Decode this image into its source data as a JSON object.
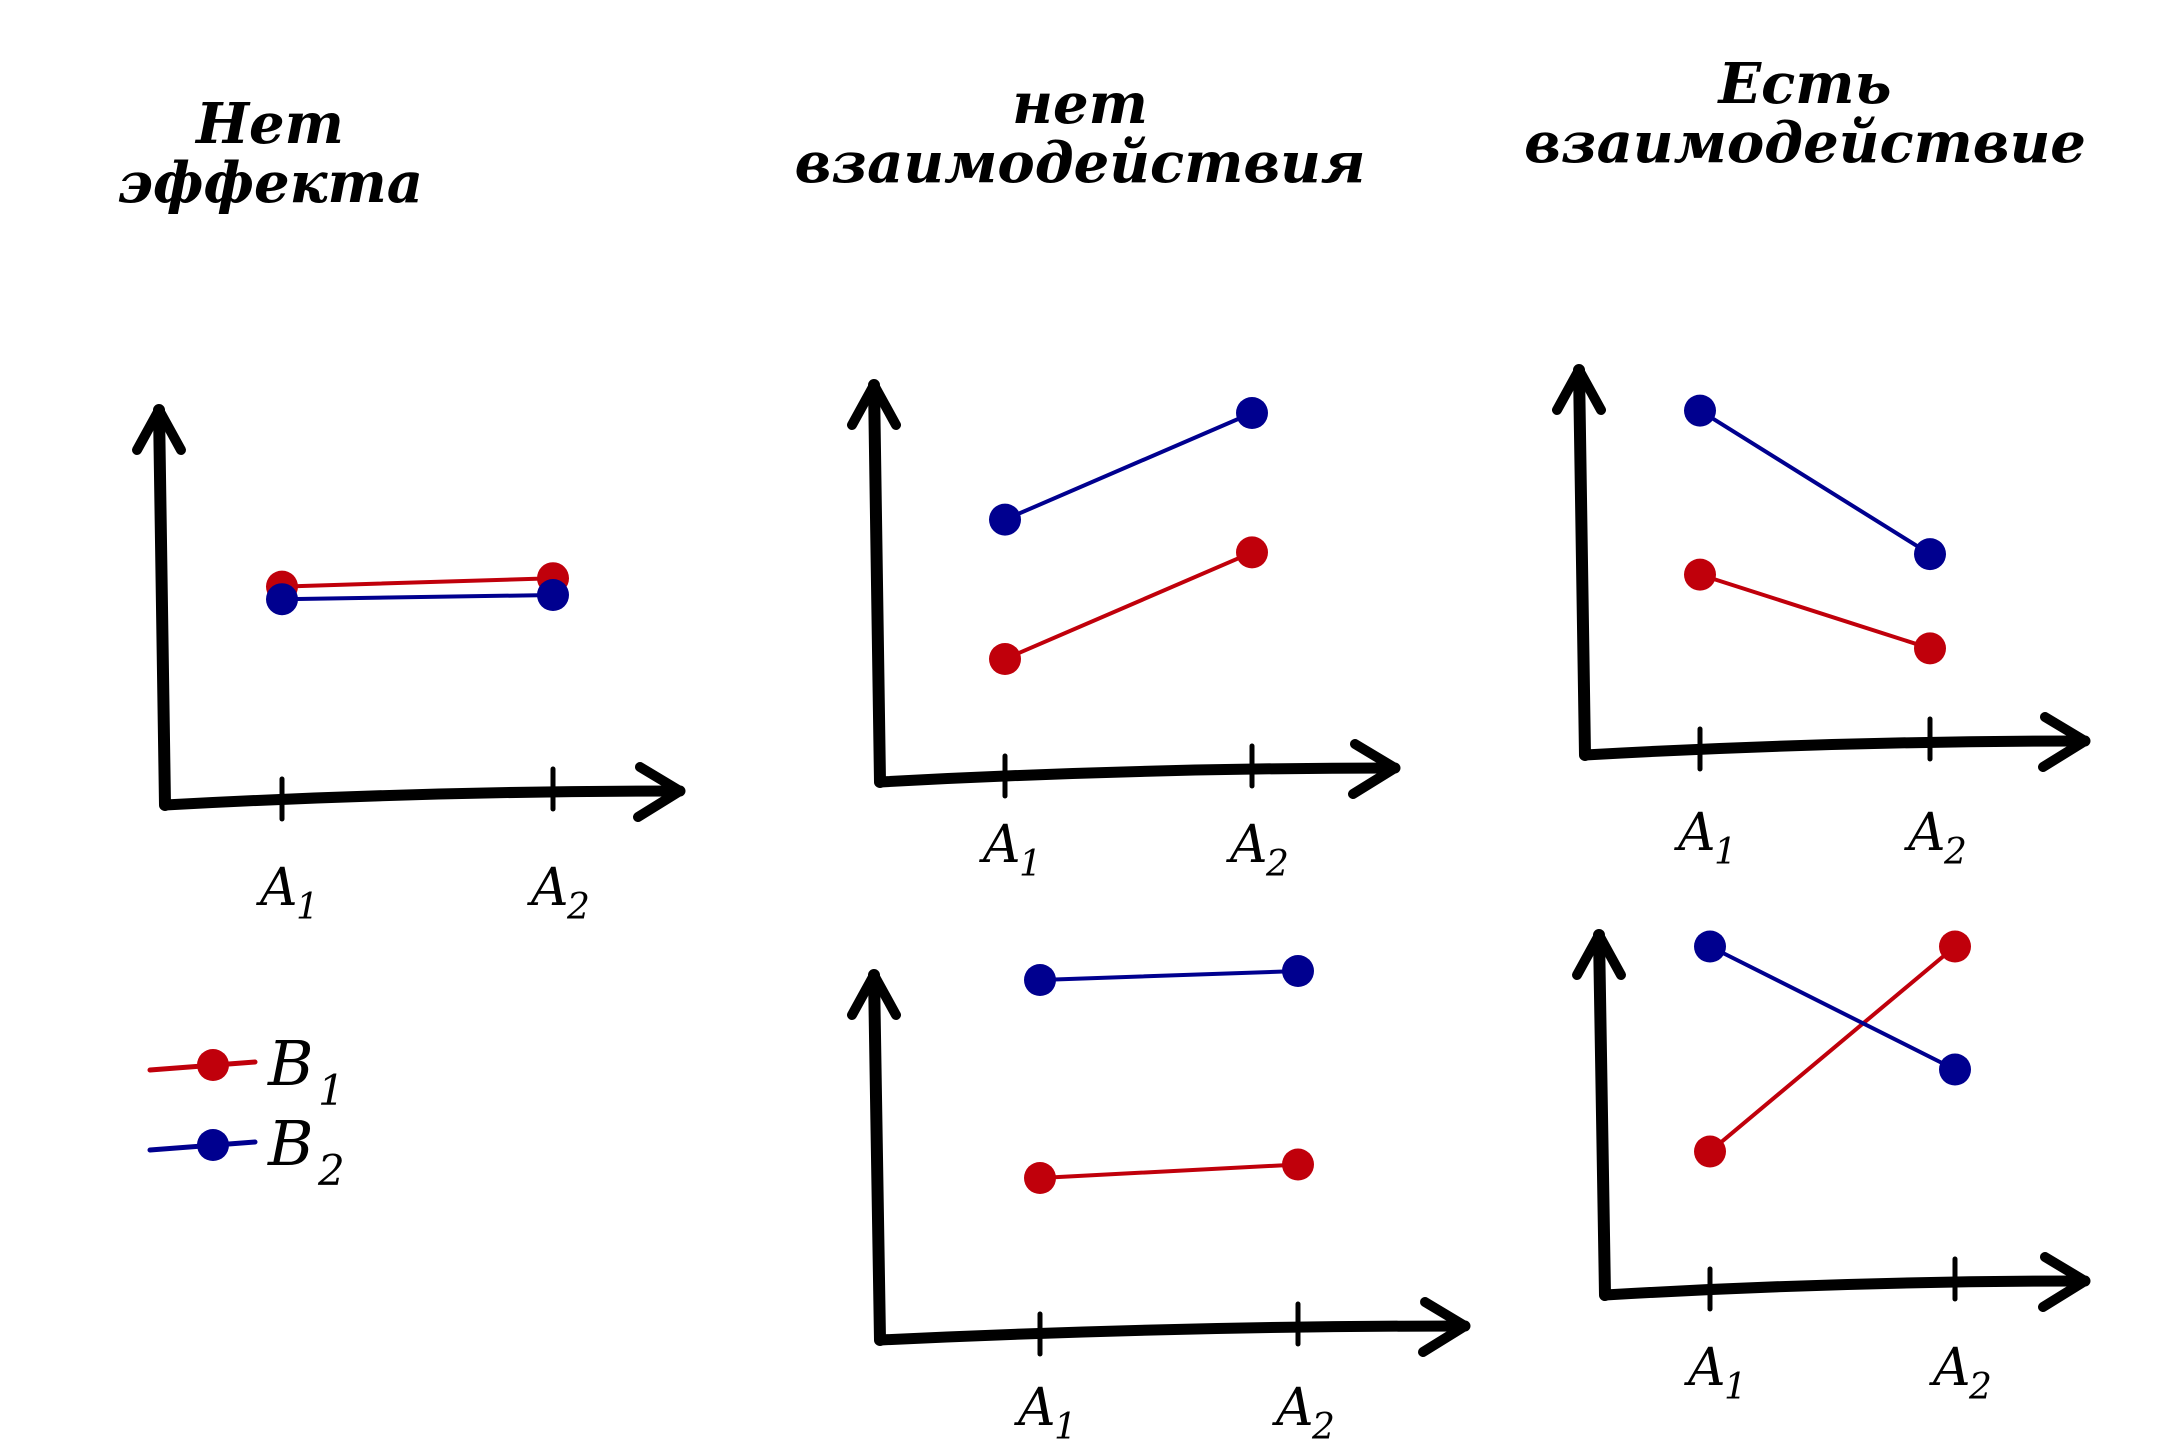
{
  "titles": {
    "no_effect": [
      "Нет",
      "эффекта"
    ],
    "no_interaction": [
      "нет",
      "взаимодействия"
    ],
    "has_interaction": [
      "Есть",
      "взаимодействие"
    ]
  },
  "colors": {
    "b1": "#c0000b",
    "b2": "#00008f",
    "axis": "#000000"
  },
  "legend": [
    {
      "name": "B",
      "sub": "1",
      "color_key": "b1"
    },
    {
      "name": "B",
      "sub": "2",
      "color_key": "b2"
    }
  ],
  "tick_labels": [
    {
      "text": "A",
      "sub": "1"
    },
    {
      "text": "A",
      "sub": "2"
    }
  ],
  "chart_data": [
    {
      "type": "line",
      "group": "no_effect",
      "categories": [
        "A1",
        "A2"
      ],
      "series": [
        {
          "name": "B1",
          "values": [
            5.2,
            5.4
          ]
        },
        {
          "name": "B2",
          "values": [
            4.9,
            5.0
          ]
        }
      ]
    },
    {
      "type": "line",
      "group": "no_interaction",
      "categories": [
        "A1",
        "A2"
      ],
      "series": [
        {
          "name": "B1",
          "values": [
            3.0,
            5.6
          ]
        },
        {
          "name": "B2",
          "values": [
            6.4,
            9.0
          ]
        }
      ]
    },
    {
      "type": "line",
      "group": "no_interaction",
      "categories": [
        "A1",
        "A2"
      ],
      "series": [
        {
          "name": "B1",
          "values": [
            3.6,
            3.9
          ]
        },
        {
          "name": "B2",
          "values": [
            8.0,
            8.2
          ]
        }
      ]
    },
    {
      "type": "line",
      "group": "has_interaction",
      "categories": [
        "A1",
        "A2"
      ],
      "series": [
        {
          "name": "B1",
          "values": [
            4.4,
            2.6
          ]
        },
        {
          "name": "B2",
          "values": [
            8.4,
            4.9
          ]
        }
      ]
    },
    {
      "type": "line",
      "group": "has_interaction",
      "categories": [
        "A1",
        "A2"
      ],
      "series": [
        {
          "name": "B1",
          "values": [
            3.5,
            8.5
          ]
        },
        {
          "name": "B2",
          "values": [
            8.5,
            5.5
          ]
        }
      ]
    }
  ]
}
